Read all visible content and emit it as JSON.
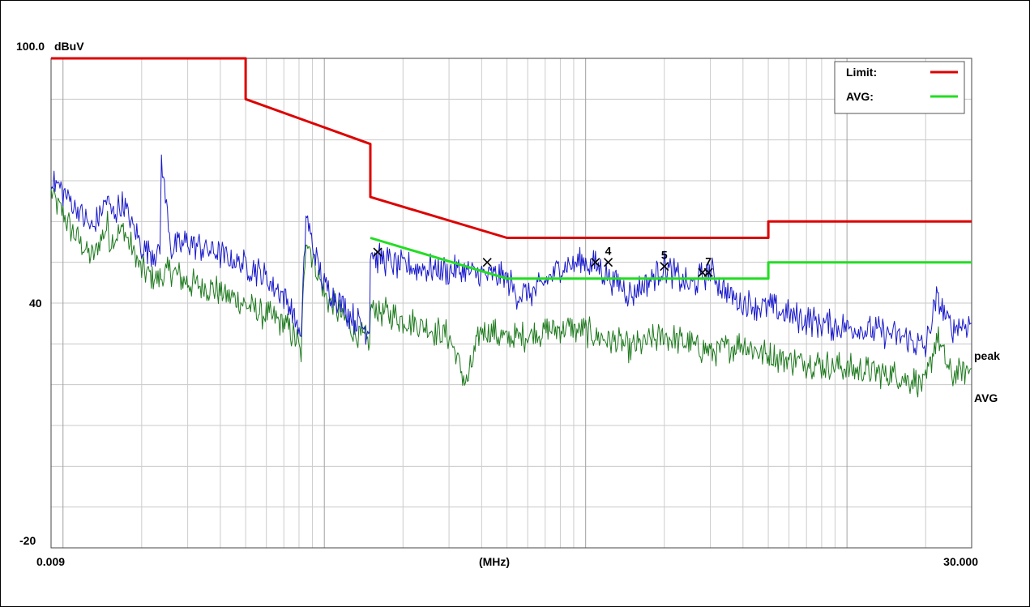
{
  "chart_data": {
    "type": "line",
    "title": "",
    "ylabel": "dBuV",
    "xlabel": "(MHz)",
    "x_scale": "log",
    "xlim": [
      0.009,
      30.0
    ],
    "ylim": [
      -20,
      100
    ],
    "y_tick_labels": [
      "100.0",
      "40",
      "-20"
    ],
    "x_tick_labels": [
      "0.009",
      "30.000"
    ],
    "grid": true,
    "legend": {
      "placement": "top-right",
      "entries": [
        {
          "label": "Limit:",
          "color": "#dd0000"
        },
        {
          "label": "AVG:",
          "color": "#22dd22"
        }
      ]
    },
    "series": [
      {
        "name": "Limit",
        "color": "#dd0000",
        "x": [
          0.009,
          0.05,
          0.05,
          0.15,
          0.15,
          0.5,
          5.0,
          5.0,
          30.0
        ],
        "y": [
          100,
          100,
          90,
          79,
          66,
          56,
          56,
          60,
          60
        ]
      },
      {
        "name": "AVG limit",
        "color": "#22dd22",
        "x": [
          0.15,
          0.5,
          5.0,
          5.0,
          30.0
        ],
        "y": [
          56,
          46,
          46,
          50,
          50
        ]
      },
      {
        "name": "peak",
        "color": "#1a1acc",
        "x": [
          0.009,
          0.011,
          0.013,
          0.0148,
          0.0152,
          0.017,
          0.02,
          0.0235,
          0.0238,
          0.026,
          0.03,
          0.04,
          0.055,
          0.07,
          0.08,
          0.0815,
          0.085,
          0.09,
          0.1,
          0.11,
          0.13,
          0.149,
          0.15,
          0.16,
          0.2,
          0.3,
          0.4,
          0.5,
          0.55,
          0.65,
          0.8,
          1.0,
          1.1,
          1.5,
          2.0,
          2.5,
          3.0,
          3.5,
          4.0,
          5.0,
          6.0,
          8.0,
          10.0,
          13.0,
          16.0,
          20.0,
          22.0,
          25.0,
          30.0
        ],
        "y": [
          71,
          64,
          58,
          66,
          62,
          64,
          54,
          52,
          75,
          53,
          55,
          52,
          48,
          42,
          34,
          30,
          62,
          54,
          44,
          42,
          36,
          33,
          53,
          51,
          49,
          48,
          47,
          46,
          42,
          43,
          49,
          50,
          49,
          42,
          49,
          44,
          48,
          42,
          40,
          39,
          37,
          35,
          34,
          33,
          32,
          29,
          41,
          34,
          35
        ]
      },
      {
        "name": "AVG",
        "color": "#1e7a1e",
        "x": [
          0.009,
          0.011,
          0.013,
          0.0148,
          0.0152,
          0.017,
          0.02,
          0.0235,
          0.026,
          0.03,
          0.04,
          0.055,
          0.07,
          0.08,
          0.0815,
          0.085,
          0.1,
          0.13,
          0.149,
          0.15,
          0.2,
          0.3,
          0.35,
          0.4,
          0.5,
          0.7,
          0.8,
          1.0,
          1.5,
          2.0,
          3.0,
          4.0,
          5.0,
          6.0,
          8.0,
          10.0,
          13.0,
          16.0,
          20.0,
          22.0,
          25.0,
          30.0
        ],
        "y": [
          67,
          57,
          51,
          59,
          55,
          58,
          48,
          46,
          48,
          45,
          43,
          38,
          35,
          30,
          28,
          57,
          42,
          33,
          30,
          39,
          36,
          32,
          20,
          34,
          31,
          33,
          34,
          33,
          29,
          32,
          28,
          30,
          27,
          26,
          25,
          24,
          23,
          22,
          20,
          32,
          22,
          24
        ]
      }
    ],
    "series_labels": [
      "peak",
      "AVG"
    ],
    "markers": [
      {
        "label": "",
        "x": 0.16,
        "y": 52.5
      },
      {
        "label": "",
        "x": 0.42,
        "y": 50
      },
      {
        "label": "",
        "x": 1.09,
        "y": 50
      },
      {
        "label": "4",
        "x": 1.22,
        "y": 50
      },
      {
        "label": "5",
        "x": 2.0,
        "y": 49
      },
      {
        "label": "",
        "x": 2.8,
        "y": 47.5
      },
      {
        "label": "7",
        "x": 2.95,
        "y": 47.5
      }
    ]
  }
}
